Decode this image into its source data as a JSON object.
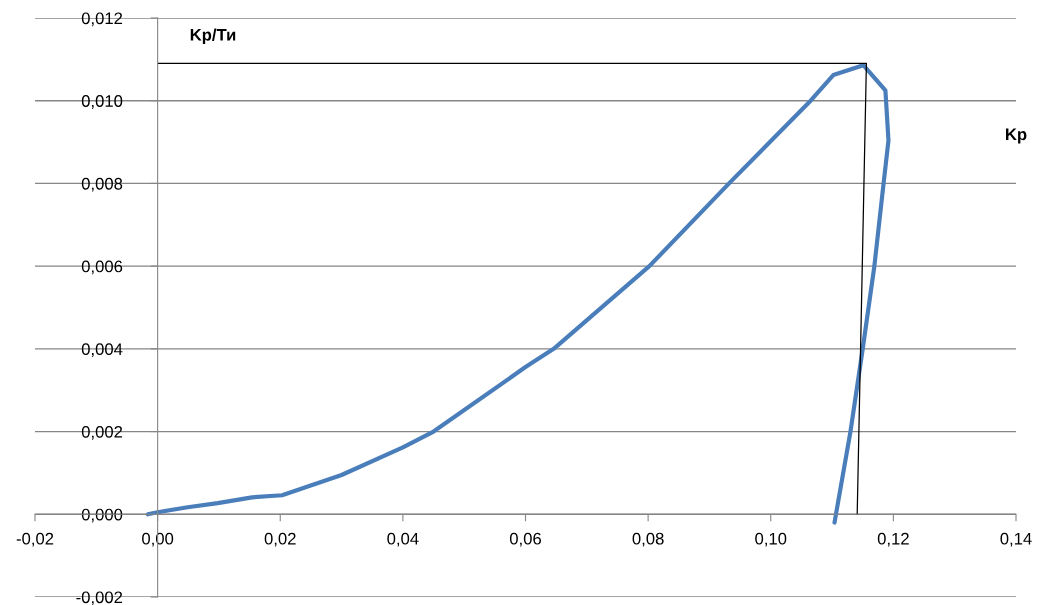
{
  "chart_data": {
    "type": "line",
    "xlabel": "Kp",
    "ylabel": "Kp/Ти",
    "series": [
      {
        "color": "#4a7ebb",
        "x": [
          -0.0016,
          0,
          0.0049,
          0.0098,
          0.0154,
          0.0203,
          0.03,
          0.04,
          0.045,
          0.06,
          0.0646,
          0.0802,
          0.0932,
          0.1065,
          0.1102,
          0.1151,
          0.1187,
          0.1192,
          0.1184,
          0.1169,
          0.115,
          0.113,
          0.1104
        ],
        "values": [
          0,
          5e-05,
          0.00017,
          0.00027,
          0.00041,
          0.00046,
          0.00095,
          0.00162,
          0.002,
          0.00356,
          0.004,
          0.006,
          0.008,
          0.01,
          0.01062,
          0.01086,
          0.01025,
          0.00904,
          0.008,
          0.006,
          0.004,
          0.002,
          -0.0002
        ]
      },
      {
        "color": "#000000",
        "x": [
          0,
          0.1156,
          0.1141
        ],
        "values": [
          0.0109,
          0.0109,
          0
        ]
      }
    ],
    "xlim": [
      -0.02,
      0.14
    ],
    "ylim": [
      -0.002,
      0.012
    ],
    "xticks": [
      {
        "value": -0.02,
        "label": "-0,02"
      },
      {
        "value": 0,
        "label": "0,00"
      },
      {
        "value": 0.02,
        "label": "0,02"
      },
      {
        "value": 0.04,
        "label": "0,04"
      },
      {
        "value": 0.06,
        "label": "0,06"
      },
      {
        "value": 0.08,
        "label": "0,08"
      },
      {
        "value": 0.1,
        "label": "0,10"
      },
      {
        "value": 0.12,
        "label": "0,12"
      },
      {
        "value": 0.14,
        "label": "0,14"
      }
    ],
    "yticks": [
      {
        "value": -0.002,
        "label": "-0,002"
      },
      {
        "value": 0,
        "label": "0,000"
      },
      {
        "value": 0.002,
        "label": "0,002"
      },
      {
        "value": 0.004,
        "label": "0,004"
      },
      {
        "value": 0.006,
        "label": "0,006"
      },
      {
        "value": 0.008,
        "label": "0,008"
      },
      {
        "value": 0.01,
        "label": "0,010"
      },
      {
        "value": 0.012,
        "label": "0,012"
      }
    ],
    "grid": "y",
    "legend": false
  }
}
